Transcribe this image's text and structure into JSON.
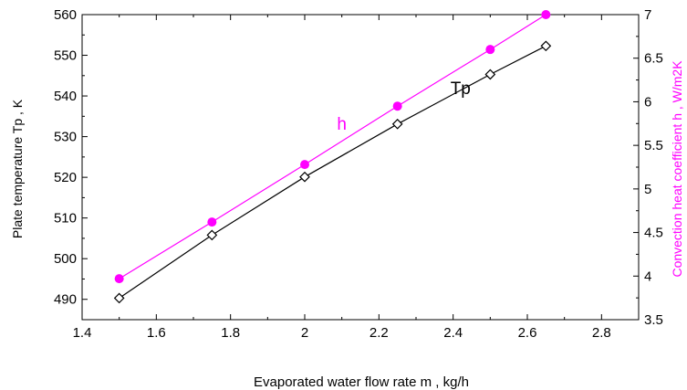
{
  "chart_data": {
    "type": "line",
    "title": "",
    "xlabel": "Evaporated water flow rate m , kg/h",
    "ylabel_left": "Plate temperature Tp , K",
    "ylabel_right": "Convection heat coefficient h , W/m2K",
    "xlim": [
      1.4,
      2.9
    ],
    "ylim_left": [
      485,
      560
    ],
    "ylim_right": [
      3.5,
      7
    ],
    "x_ticks": [
      1.4,
      1.6,
      1.8,
      2.0,
      2.2,
      2.4,
      2.6,
      2.8
    ],
    "x_tick_labels": [
      "1.4",
      "1.6",
      "1.8",
      "2",
      "2.2",
      "2.4",
      "2.6",
      "2.8"
    ],
    "y_left_ticks": [
      490,
      500,
      510,
      520,
      530,
      540,
      550,
      560
    ],
    "y_left_tick_labels": [
      "490",
      "500",
      "510",
      "520",
      "530",
      "540",
      "550",
      "560"
    ],
    "y_right_ticks": [
      3.5,
      4,
      4.5,
      5,
      5.5,
      6,
      6.5,
      7
    ],
    "y_right_tick_labels": [
      "3.5",
      "4",
      "4.5",
      "5",
      "5.5",
      "6",
      "6.5",
      "7"
    ],
    "grid": false,
    "series": [
      {
        "name": "Tp",
        "axis": "left",
        "color": "#000000",
        "marker": "open-diamond",
        "x": [
          1.5,
          1.75,
          2.0,
          2.25,
          2.5,
          2.65
        ],
        "y": [
          490.3,
          505.8,
          520.1,
          533.1,
          545.3,
          552.3
        ]
      },
      {
        "name": "h",
        "axis": "right",
        "color": "#ff00ff",
        "marker": "filled-circle",
        "x": [
          1.5,
          1.75,
          2.0,
          2.25,
          2.5,
          2.65
        ],
        "y": [
          3.97,
          4.62,
          5.28,
          5.95,
          6.6,
          7.0
        ]
      }
    ]
  }
}
